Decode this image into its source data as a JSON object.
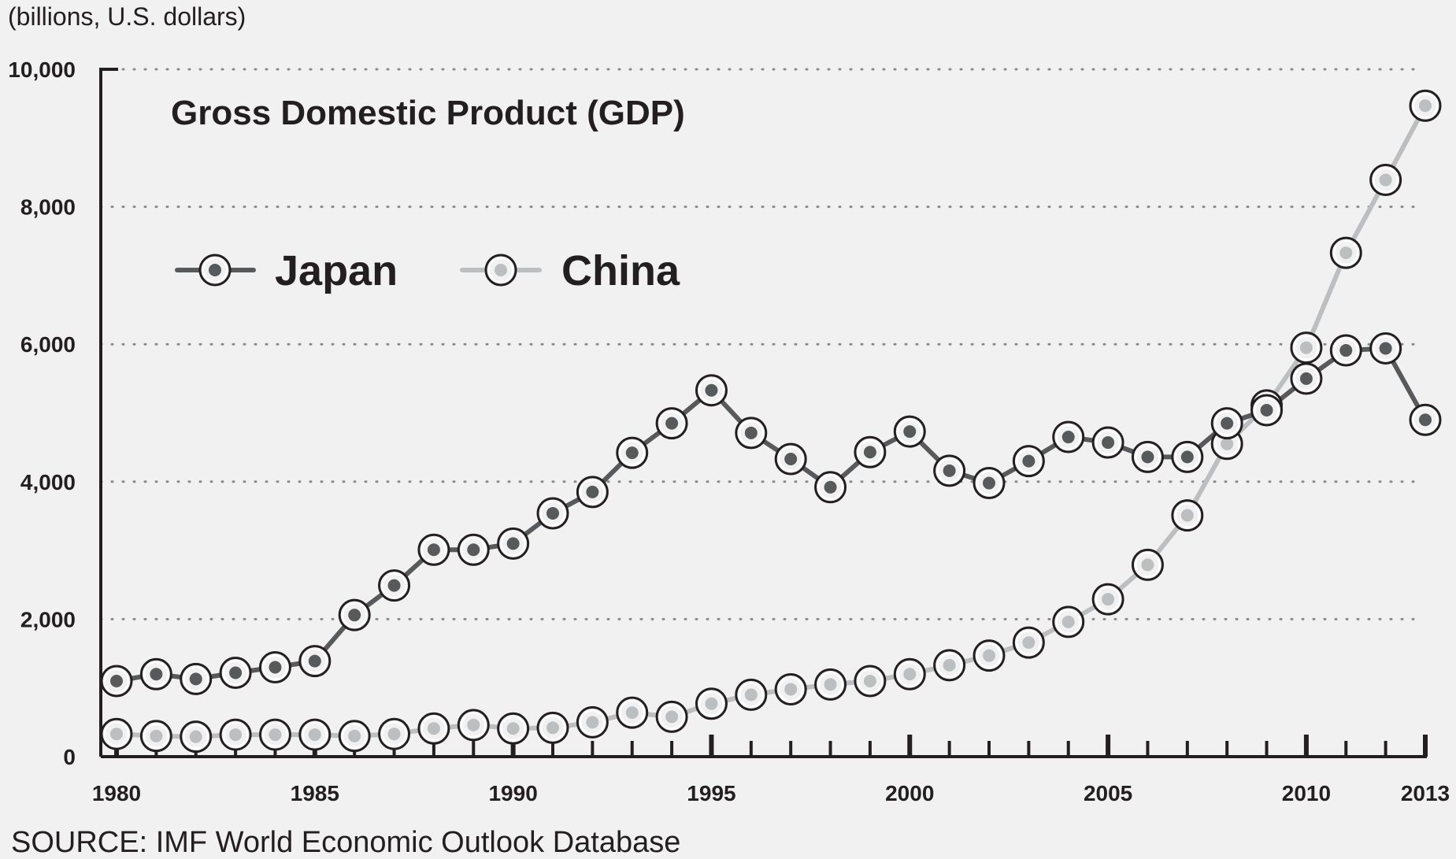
{
  "chart_data": {
    "type": "line",
    "title": "Gross Domestic Product (GDP)",
    "unit_label": "(billions, U.S. dollars)",
    "source": "SOURCE: IMF World Economic Outlook Database",
    "ylim": [
      0,
      10000
    ],
    "xlim": [
      1980,
      2013
    ],
    "y_ticks": [
      0,
      2000,
      4000,
      6000,
      8000,
      10000
    ],
    "y_tick_labels": [
      "0",
      "2,000",
      "4,000",
      "6,000",
      "8,000",
      "10,000"
    ],
    "x_tick_labels": [
      "1980",
      "1985",
      "1990",
      "1995",
      "2000",
      "2005",
      "2010",
      "2013"
    ],
    "x_tick_years": [
      1980,
      1985,
      1990,
      1995,
      2000,
      2005,
      2010,
      2013
    ],
    "x": [
      1980,
      1981,
      1982,
      1983,
      1984,
      1985,
      1986,
      1987,
      1988,
      1989,
      1990,
      1991,
      1992,
      1993,
      1994,
      1995,
      1996,
      1997,
      1998,
      1999,
      2000,
      2001,
      2002,
      2003,
      2004,
      2005,
      2006,
      2007,
      2008,
      2009,
      2010,
      2011,
      2012,
      2013
    ],
    "grid": true,
    "legend_position": "top-left",
    "series": [
      {
        "name": "Japan",
        "line_color": "#58595b",
        "dot_color": "#58595b",
        "values": [
          1100,
          1200,
          1130,
          1220,
          1300,
          1390,
          2060,
          2490,
          3010,
          3010,
          3100,
          3540,
          3850,
          4420,
          4850,
          5330,
          4710,
          4330,
          3920,
          4430,
          4730,
          4160,
          3980,
          4300,
          4650,
          4570,
          4360,
          4360,
          4850,
          5040,
          5500,
          5910,
          5940,
          4900
        ]
      },
      {
        "name": "China",
        "line_color": "#bcbec0",
        "dot_color": "#bcbec0",
        "values": [
          330,
          300,
          290,
          320,
          320,
          320,
          300,
          330,
          410,
          460,
          410,
          420,
          500,
          640,
          580,
          770,
          900,
          980,
          1050,
          1100,
          1200,
          1330,
          1470,
          1660,
          1960,
          2290,
          2790,
          3510,
          4550,
          5110,
          5950,
          7330,
          8390,
          9470
        ]
      }
    ]
  }
}
